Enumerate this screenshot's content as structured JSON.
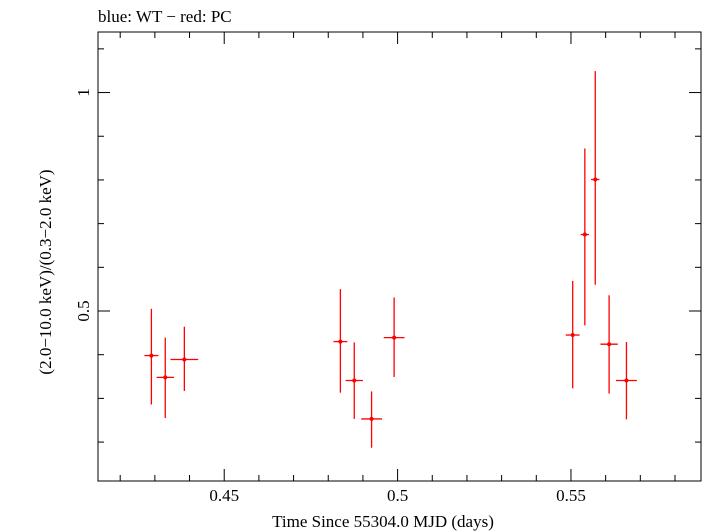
{
  "chart_data": {
    "type": "scatter",
    "title": "blue: WT − red: PC",
    "xlabel": "Time Since 55304.0 MJD (days)",
    "ylabel": "(2.0−10.0 keV)/(0.3−2.0 keV)",
    "xlim": [
      0.4136,
      0.5875
    ],
    "ylim": [
      0.1109,
      1.1386
    ],
    "x_ticks": [
      {
        "value": 0.45,
        "label": "0.45"
      },
      {
        "value": 0.5,
        "label": "0.5"
      },
      {
        "value": 0.55,
        "label": "0.55"
      }
    ],
    "y_ticks": [
      {
        "value": 0.5,
        "label": "0.5"
      },
      {
        "value": 1,
        "label": "1"
      }
    ],
    "grid": false,
    "series": [
      {
        "color": "#ff0000",
        "points": [
          {
            "x": 0.429,
            "xerr": 0.002,
            "y": 0.398,
            "ylo": 0.286,
            "yhi": 0.505
          },
          {
            "x": 0.433,
            "xerr": 0.0025,
            "y": 0.348,
            "ylo": 0.255,
            "yhi": 0.439
          },
          {
            "x": 0.4385,
            "xerr": 0.004,
            "y": 0.389,
            "ylo": 0.317,
            "yhi": 0.464
          },
          {
            "x": 0.4835,
            "xerr": 0.002,
            "y": 0.43,
            "ylo": 0.313,
            "yhi": 0.55
          },
          {
            "x": 0.4875,
            "xerr": 0.0025,
            "y": 0.341,
            "ylo": 0.253,
            "yhi": 0.428
          },
          {
            "x": 0.4925,
            "xerr": 0.003,
            "y": 0.253,
            "ylo": 0.187,
            "yhi": 0.316
          },
          {
            "x": 0.499,
            "xerr": 0.003,
            "y": 0.439,
            "ylo": 0.349,
            "yhi": 0.531
          },
          {
            "x": 0.5505,
            "xerr": 0.002,
            "y": 0.445,
            "ylo": 0.323,
            "yhi": 0.569
          },
          {
            "x": 0.554,
            "xerr": 0.0012,
            "y": 0.675,
            "ylo": 0.467,
            "yhi": 0.872
          },
          {
            "x": 0.557,
            "xerr": 0.0012,
            "y": 0.801,
            "ylo": 0.56,
            "yhi": 1.049
          },
          {
            "x": 0.561,
            "xerr": 0.0025,
            "y": 0.424,
            "ylo": 0.311,
            "yhi": 0.536
          },
          {
            "x": 0.566,
            "xerr": 0.003,
            "y": 0.341,
            "ylo": 0.252,
            "yhi": 0.429
          }
        ]
      }
    ]
  }
}
